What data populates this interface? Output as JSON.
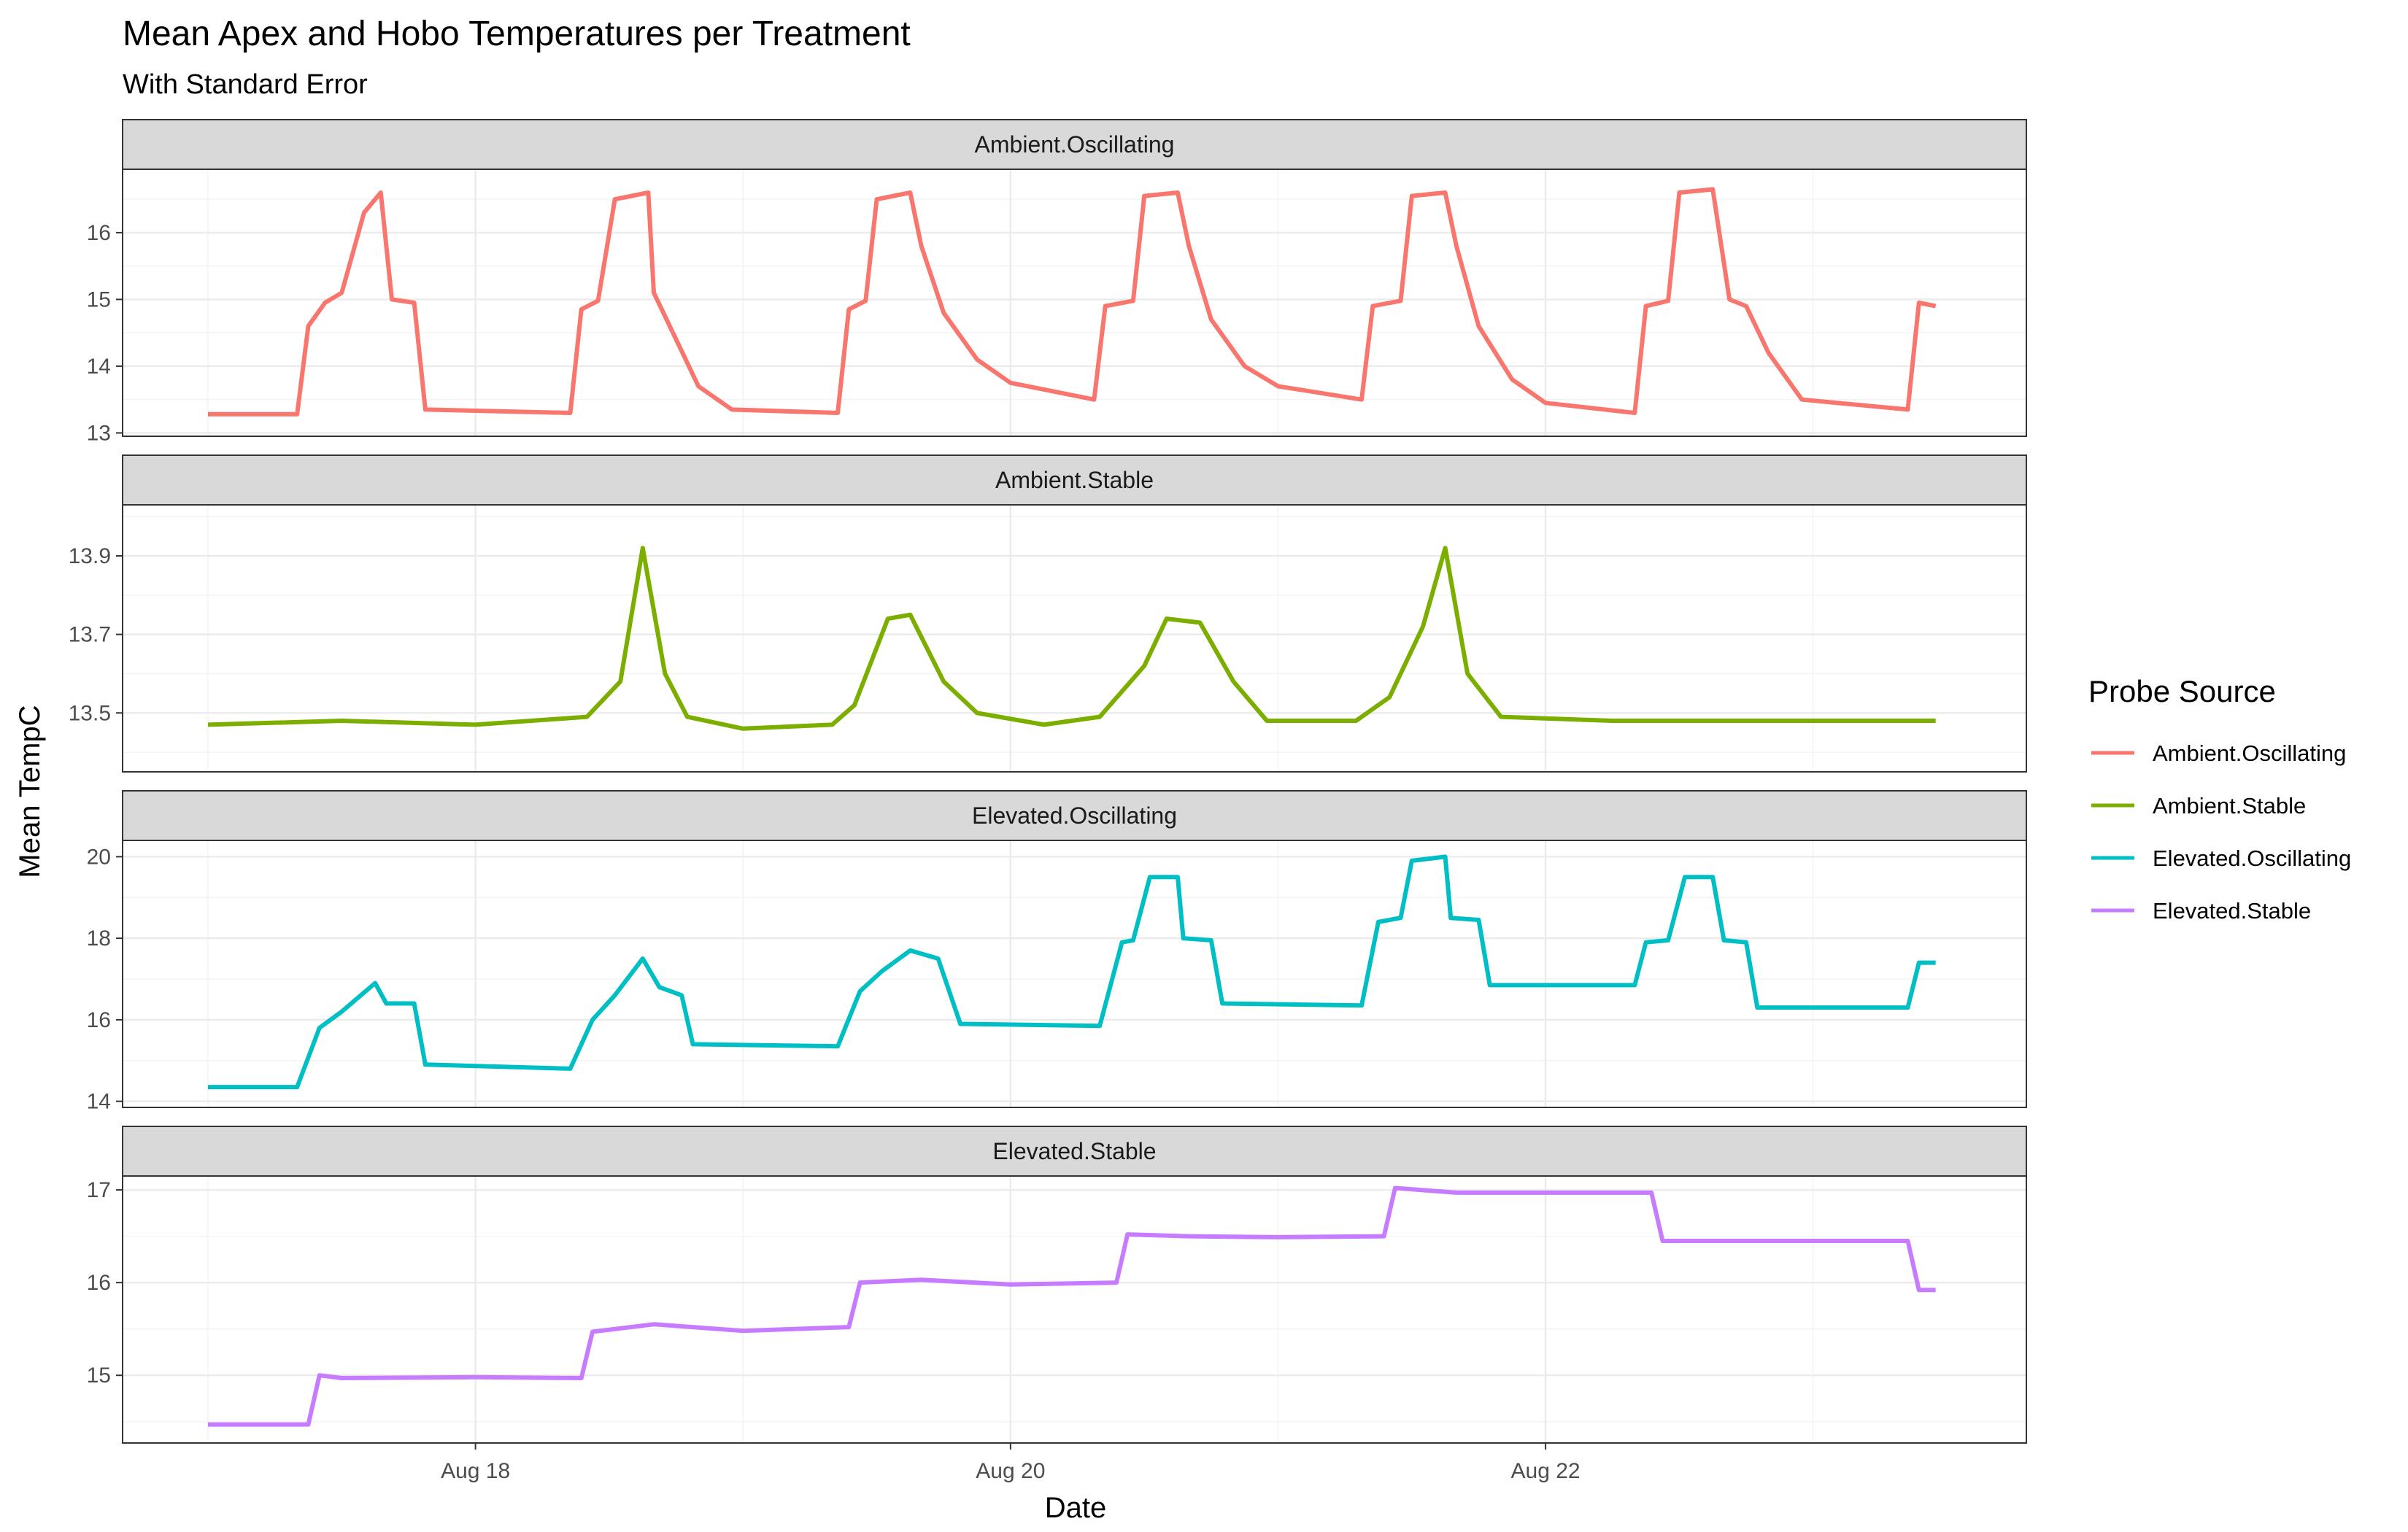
{
  "chart_data": {
    "type": "line",
    "title": "Mean Apex and Hobo Temperatures per Treatment",
    "subtitle": "With Standard Error",
    "xlabel": "Date",
    "ylabel": "Mean TempC",
    "x_tick_labels": [
      "Aug 18",
      "Aug 20",
      "Aug 22"
    ],
    "x_range": [
      "2023-08-17T00:00",
      "2023-08-23T12:00"
    ],
    "legend": {
      "title": "Probe Source",
      "placement": "right",
      "entries": [
        "Ambient.Oscillating",
        "Ambient.Stable",
        "Elevated.Oscillating",
        "Elevated.Stable"
      ]
    },
    "grid": true,
    "series": [
      {
        "name": "Ambient.Oscillating",
        "color": "#F8766D",
        "ylim": [
          12.95,
          16.95
        ],
        "yticks": [
          13,
          14,
          15,
          16
        ],
        "points": [
          [
            "2023-08-17T00:00",
            13.28
          ],
          [
            "2023-08-17T08:00",
            13.28
          ],
          [
            "2023-08-17T09:00",
            14.6
          ],
          [
            "2023-08-17T10:30",
            14.95
          ],
          [
            "2023-08-17T12:00",
            15.1
          ],
          [
            "2023-08-17T14:00",
            16.3
          ],
          [
            "2023-08-17T15:30",
            16.6
          ],
          [
            "2023-08-17T16:30",
            15.0
          ],
          [
            "2023-08-17T18:30",
            14.95
          ],
          [
            "2023-08-17T19:30",
            13.35
          ],
          [
            "2023-08-18T08:30",
            13.3
          ],
          [
            "2023-08-18T09:30",
            14.85
          ],
          [
            "2023-08-18T11:00",
            14.98
          ],
          [
            "2023-08-18T12:30",
            16.5
          ],
          [
            "2023-08-18T15:30",
            16.6
          ],
          [
            "2023-08-18T16:00",
            15.1
          ],
          [
            "2023-08-18T18:00",
            14.4
          ],
          [
            "2023-08-18T20:00",
            13.7
          ],
          [
            "2023-08-18T23:00",
            13.35
          ],
          [
            "2023-08-19T08:30",
            13.3
          ],
          [
            "2023-08-19T09:30",
            14.85
          ],
          [
            "2023-08-19T11:00",
            14.98
          ],
          [
            "2023-08-19T12:00",
            16.5
          ],
          [
            "2023-08-19T15:00",
            16.6
          ],
          [
            "2023-08-19T16:00",
            15.8
          ],
          [
            "2023-08-19T18:00",
            14.8
          ],
          [
            "2023-08-19T21:00",
            14.1
          ],
          [
            "2023-08-20T00:00",
            13.75
          ],
          [
            "2023-08-20T07:30",
            13.5
          ],
          [
            "2023-08-20T08:30",
            14.9
          ],
          [
            "2023-08-20T11:00",
            14.98
          ],
          [
            "2023-08-20T12:00",
            16.55
          ],
          [
            "2023-08-20T15:00",
            16.6
          ],
          [
            "2023-08-20T16:00",
            15.8
          ],
          [
            "2023-08-20T18:00",
            14.7
          ],
          [
            "2023-08-20T21:00",
            14.0
          ],
          [
            "2023-08-21T00:00",
            13.7
          ],
          [
            "2023-08-21T07:30",
            13.5
          ],
          [
            "2023-08-21T08:30",
            14.9
          ],
          [
            "2023-08-21T11:00",
            14.98
          ],
          [
            "2023-08-21T12:00",
            16.55
          ],
          [
            "2023-08-21T15:00",
            16.6
          ],
          [
            "2023-08-21T16:00",
            15.8
          ],
          [
            "2023-08-21T18:00",
            14.6
          ],
          [
            "2023-08-21T21:00",
            13.8
          ],
          [
            "2023-08-22T00:00",
            13.45
          ],
          [
            "2023-08-22T08:00",
            13.3
          ],
          [
            "2023-08-22T09:00",
            14.9
          ],
          [
            "2023-08-22T11:00",
            14.98
          ],
          [
            "2023-08-22T12:00",
            16.6
          ],
          [
            "2023-08-22T15:00",
            16.65
          ],
          [
            "2023-08-22T16:30",
            15.0
          ],
          [
            "2023-08-22T18:00",
            14.9
          ],
          [
            "2023-08-22T20:00",
            14.2
          ],
          [
            "2023-08-22T23:00",
            13.5
          ],
          [
            "2023-08-23T08:30",
            13.35
          ],
          [
            "2023-08-23T09:30",
            14.95
          ],
          [
            "2023-08-23T11:00",
            14.9
          ]
        ]
      },
      {
        "name": "Ambient.Stable",
        "color": "#7CAE00",
        "ylim": [
          13.35,
          14.03
        ],
        "yticks": [
          13.5,
          13.7,
          13.9
        ],
        "points": [
          [
            "2023-08-17T00:00",
            13.47
          ],
          [
            "2023-08-17T12:00",
            13.48
          ],
          [
            "2023-08-18T00:00",
            13.47
          ],
          [
            "2023-08-18T10:00",
            13.49
          ],
          [
            "2023-08-18T13:00",
            13.58
          ],
          [
            "2023-08-18T15:00",
            13.92
          ],
          [
            "2023-08-18T17:00",
            13.6
          ],
          [
            "2023-08-18T19:00",
            13.49
          ],
          [
            "2023-08-19T00:00",
            13.46
          ],
          [
            "2023-08-19T08:00",
            13.47
          ],
          [
            "2023-08-19T10:00",
            13.52
          ],
          [
            "2023-08-19T13:00",
            13.74
          ],
          [
            "2023-08-19T15:00",
            13.75
          ],
          [
            "2023-08-19T18:00",
            13.58
          ],
          [
            "2023-08-19T21:00",
            13.5
          ],
          [
            "2023-08-20T03:00",
            13.47
          ],
          [
            "2023-08-20T08:00",
            13.49
          ],
          [
            "2023-08-20T12:00",
            13.62
          ],
          [
            "2023-08-20T14:00",
            13.74
          ],
          [
            "2023-08-20T17:00",
            13.73
          ],
          [
            "2023-08-20T20:00",
            13.58
          ],
          [
            "2023-08-20T23:00",
            13.48
          ],
          [
            "2023-08-21T07:00",
            13.48
          ],
          [
            "2023-08-21T10:00",
            13.54
          ],
          [
            "2023-08-21T13:00",
            13.72
          ],
          [
            "2023-08-21T15:00",
            13.92
          ],
          [
            "2023-08-21T17:00",
            13.6
          ],
          [
            "2023-08-21T20:00",
            13.49
          ],
          [
            "2023-08-22T06:00",
            13.48
          ],
          [
            "2023-08-23T00:00",
            13.48
          ],
          [
            "2023-08-23T11:00",
            13.48
          ]
        ]
      },
      {
        "name": "Elevated.Oscillating",
        "color": "#00BFC4",
        "ylim": [
          13.85,
          20.4
        ],
        "yticks": [
          14,
          16,
          18,
          20
        ],
        "points": [
          [
            "2023-08-17T00:00",
            14.35
          ],
          [
            "2023-08-17T08:00",
            14.35
          ],
          [
            "2023-08-17T10:00",
            15.8
          ],
          [
            "2023-08-17T12:00",
            16.2
          ],
          [
            "2023-08-17T15:00",
            16.9
          ],
          [
            "2023-08-17T16:00",
            16.4
          ],
          [
            "2023-08-17T18:30",
            16.4
          ],
          [
            "2023-08-17T19:30",
            14.9
          ],
          [
            "2023-08-18T08:30",
            14.8
          ],
          [
            "2023-08-18T10:30",
            16.0
          ],
          [
            "2023-08-18T12:30",
            16.6
          ],
          [
            "2023-08-18T15:00",
            17.5
          ],
          [
            "2023-08-18T16:30",
            16.8
          ],
          [
            "2023-08-18T18:30",
            16.6
          ],
          [
            "2023-08-18T19:30",
            15.4
          ],
          [
            "2023-08-19T08:30",
            15.35
          ],
          [
            "2023-08-19T10:30",
            16.7
          ],
          [
            "2023-08-19T12:30",
            17.2
          ],
          [
            "2023-08-19T15:00",
            17.7
          ],
          [
            "2023-08-19T17:30",
            17.5
          ],
          [
            "2023-08-19T19:30",
            15.9
          ],
          [
            "2023-08-20T08:00",
            15.85
          ],
          [
            "2023-08-20T10:00",
            17.9
          ],
          [
            "2023-08-20T11:00",
            17.95
          ],
          [
            "2023-08-20T12:30",
            19.5
          ],
          [
            "2023-08-20T15:00",
            19.5
          ],
          [
            "2023-08-20T15:30",
            18.0
          ],
          [
            "2023-08-20T18:00",
            17.95
          ],
          [
            "2023-08-20T19:00",
            16.4
          ],
          [
            "2023-08-21T07:30",
            16.35
          ],
          [
            "2023-08-21T09:00",
            18.4
          ],
          [
            "2023-08-21T11:00",
            18.5
          ],
          [
            "2023-08-21T12:00",
            19.9
          ],
          [
            "2023-08-21T15:00",
            20.0
          ],
          [
            "2023-08-21T15:30",
            18.5
          ],
          [
            "2023-08-21T18:00",
            18.45
          ],
          [
            "2023-08-21T19:00",
            16.85
          ],
          [
            "2023-08-22T08:00",
            16.85
          ],
          [
            "2023-08-22T09:00",
            17.9
          ],
          [
            "2023-08-22T11:00",
            17.95
          ],
          [
            "2023-08-22T12:30",
            19.5
          ],
          [
            "2023-08-22T15:00",
            19.5
          ],
          [
            "2023-08-22T16:00",
            17.95
          ],
          [
            "2023-08-22T18:00",
            17.9
          ],
          [
            "2023-08-22T19:00",
            16.3
          ],
          [
            "2023-08-23T08:30",
            16.3
          ],
          [
            "2023-08-23T09:30",
            17.4
          ],
          [
            "2023-08-23T11:00",
            17.4
          ]
        ]
      },
      {
        "name": "Elevated.Stable",
        "color": "#C77CFF",
        "ylim": [
          14.27,
          17.15
        ],
        "yticks": [
          15,
          16,
          17
        ],
        "points": [
          [
            "2023-08-17T00:00",
            14.47
          ],
          [
            "2023-08-17T09:00",
            14.47
          ],
          [
            "2023-08-17T10:00",
            15.0
          ],
          [
            "2023-08-17T12:00",
            14.97
          ],
          [
            "2023-08-18T00:00",
            14.98
          ],
          [
            "2023-08-18T09:30",
            14.97
          ],
          [
            "2023-08-18T10:30",
            15.47
          ],
          [
            "2023-08-18T16:00",
            15.55
          ],
          [
            "2023-08-19T00:00",
            15.48
          ],
          [
            "2023-08-19T09:30",
            15.52
          ],
          [
            "2023-08-19T10:30",
            16.0
          ],
          [
            "2023-08-19T16:00",
            16.03
          ],
          [
            "2023-08-20T00:00",
            15.98
          ],
          [
            "2023-08-20T09:30",
            16.0
          ],
          [
            "2023-08-20T10:30",
            16.52
          ],
          [
            "2023-08-20T16:00",
            16.5
          ],
          [
            "2023-08-21T00:00",
            16.49
          ],
          [
            "2023-08-21T09:30",
            16.5
          ],
          [
            "2023-08-21T10:30",
            17.02
          ],
          [
            "2023-08-21T16:00",
            16.97
          ],
          [
            "2023-08-22T00:00",
            16.97
          ],
          [
            "2023-08-22T09:30",
            16.97
          ],
          [
            "2023-08-22T10:30",
            16.45
          ],
          [
            "2023-08-23T00:00",
            16.45
          ],
          [
            "2023-08-23T08:30",
            16.45
          ],
          [
            "2023-08-23T09:30",
            15.92
          ],
          [
            "2023-08-23T11:00",
            15.92
          ]
        ]
      }
    ]
  }
}
